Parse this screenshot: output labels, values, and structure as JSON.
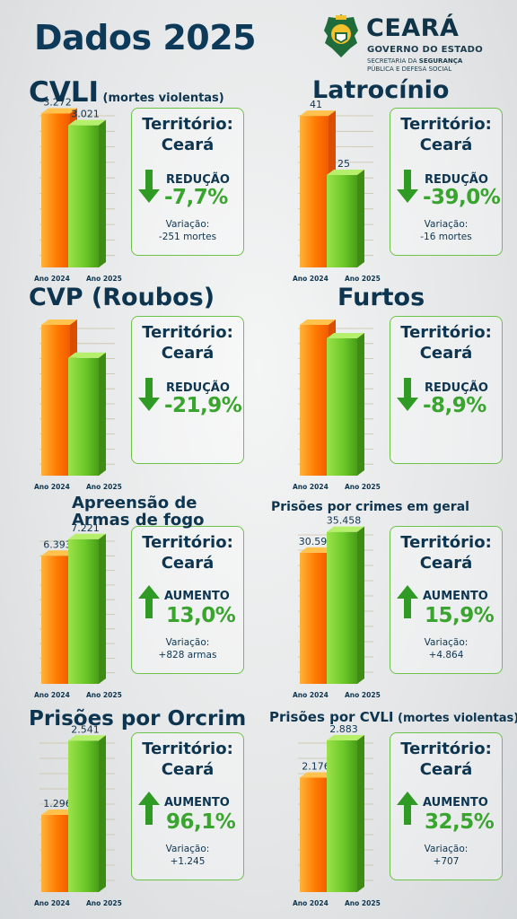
{
  "header": {
    "title": "Dados 2025"
  },
  "logo": {
    "brand": "CEARÁ",
    "sub": "GOVERNO DO ESTADO",
    "sec_line1_a": "SECRETARIA DA ",
    "sec_line1_b": "SEGURANÇA",
    "sec_line2": "PÚBLICA E DEFESA SOCIAL"
  },
  "colors": {
    "orange": "#ff7a00",
    "green": "#6cc92a",
    "text": "#0e3550",
    "accent": "#3aa52e"
  },
  "chart_data": [
    {
      "type": "bar",
      "title": "CVLI",
      "title_small": "(mortes violentas)",
      "categories": [
        "Ano 2024",
        "Ano 2025"
      ],
      "values": [
        3272,
        3021
      ],
      "labels": [
        "3.272",
        "3.021"
      ],
      "territory": "Território:\nCeará",
      "direction": "down",
      "kind": "REDUÇÃO",
      "pct": "-7,7%",
      "variation_label": "Variação:",
      "variation": "-251 mortes"
    },
    {
      "type": "bar",
      "title": "Latrocínio",
      "title_small": "",
      "categories": [
        "Ano 2024",
        "Ano 2025"
      ],
      "values": [
        41,
        25
      ],
      "labels": [
        "41",
        "25"
      ],
      "territory": "Território:\nCeará",
      "direction": "down",
      "kind": "REDUÇÃO",
      "pct": "-39,0%",
      "variation_label": "Variação:",
      "variation": "-16 mortes"
    },
    {
      "type": "bar",
      "title": "CVP (Roubos)",
      "title_small": "",
      "categories": [
        "Ano 2024",
        "Ano 2025"
      ],
      "values": [
        100,
        78.1
      ],
      "labels": [
        "",
        ""
      ],
      "territory": "Território:\nCeará",
      "direction": "down",
      "kind": "REDUÇÃO",
      "pct": "-21,9%",
      "variation_label": "",
      "variation": ""
    },
    {
      "type": "bar",
      "title": "Furtos",
      "title_small": "",
      "categories": [
        "Ano 2024",
        "Ano 2025"
      ],
      "values": [
        100,
        91.1
      ],
      "labels": [
        "",
        ""
      ],
      "territory": "Território:\nCeará",
      "direction": "down",
      "kind": "REDUÇÃO",
      "pct": "-8,9%",
      "variation_label": "",
      "variation": ""
    },
    {
      "type": "bar",
      "title": "Apreensão de\nArmas de fogo",
      "title_small": "",
      "categories": [
        "Ano 2024",
        "Ano 2025"
      ],
      "values": [
        6393,
        7221
      ],
      "labels": [
        "6.393",
        "7.221"
      ],
      "territory": "Território:\nCeará",
      "direction": "up",
      "kind": "AUMENTO",
      "pct": "13,0%",
      "variation_label": "Variação:",
      "variation": "+828 armas"
    },
    {
      "type": "bar",
      "title": "Prisões por crimes em geral",
      "title_small": "",
      "categories": [
        "Ano 2024",
        "Ano 2025"
      ],
      "values": [
        30594,
        35458
      ],
      "labels": [
        "30.594",
        "35.458"
      ],
      "territory": "Território:\nCeará",
      "direction": "up",
      "kind": "AUMENTO",
      "pct": "15,9%",
      "variation_label": "Variação:",
      "variation": "+4.864"
    },
    {
      "type": "bar",
      "title": "Prisões por Orcrim",
      "title_small": "",
      "categories": [
        "Ano 2024",
        "Ano 2025"
      ],
      "values": [
        1296,
        2541
      ],
      "labels": [
        "1.296",
        "2.541"
      ],
      "territory": "Território:\nCeará",
      "direction": "up",
      "kind": "AUMENTO",
      "pct": "96,1%",
      "variation_label": "Variação:",
      "variation": "+1.245"
    },
    {
      "type": "bar",
      "title": "Prisões por CVLI",
      "title_small": "(mortes violentas)",
      "categories": [
        "Ano 2024",
        "Ano 2025"
      ],
      "values": [
        2176,
        2883
      ],
      "labels": [
        "2.176",
        "2.883"
      ],
      "territory": "Território:\nCeará",
      "direction": "up",
      "kind": "AUMENTO",
      "pct": "32,5%",
      "variation_label": "Variação:",
      "variation": "+707"
    }
  ]
}
